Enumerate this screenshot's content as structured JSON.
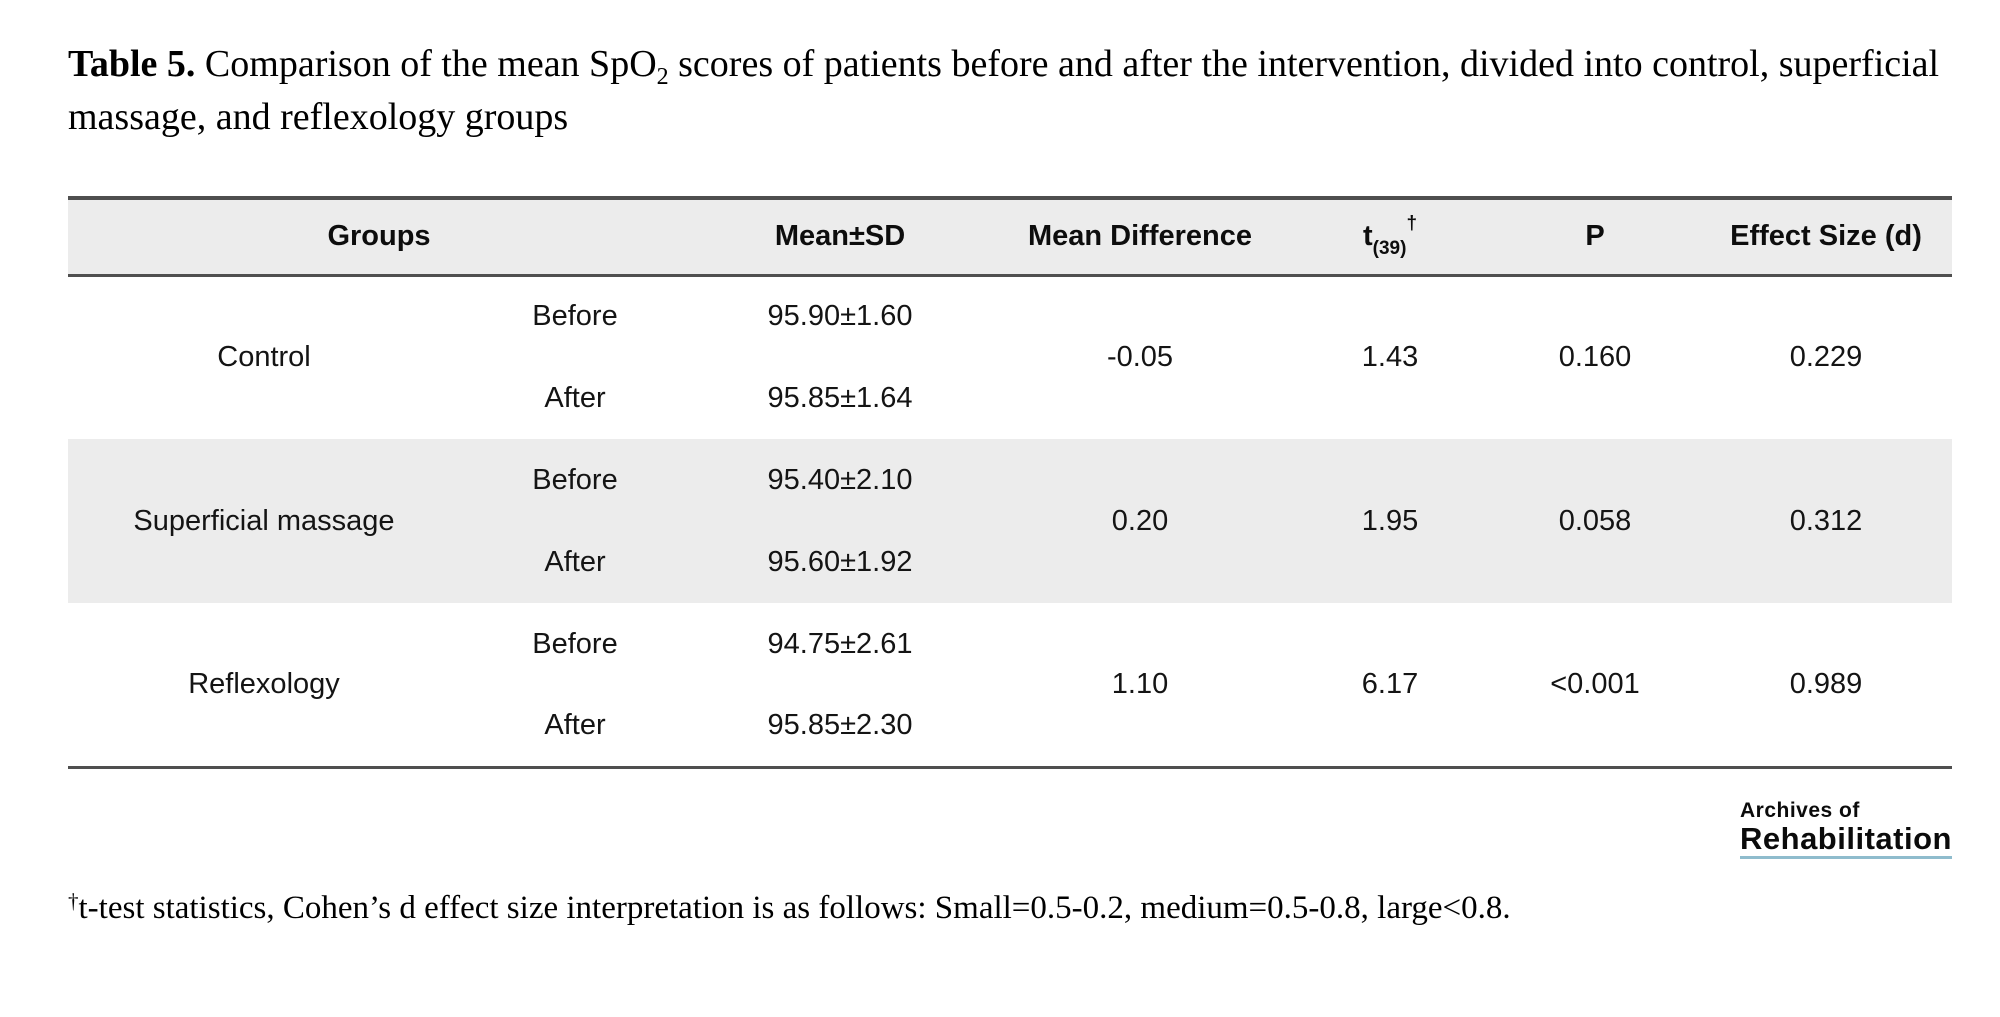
{
  "title": {
    "label": "Table 5.",
    "pre_sub": " Comparison of the mean SpO",
    "subscript": "2",
    "post_sub": " scores of patients before and after the intervention, divided into control, superficial massage, and reflexology groups"
  },
  "table": {
    "header": {
      "groups": "Groups",
      "mean_sd": "Mean±SD",
      "mean_difference": "Mean Difference",
      "t_base": "t",
      "t_subscript": "(39)",
      "t_superscript": "†",
      "p": "P",
      "effect_size": "Effect Size (d)"
    },
    "groups": [
      {
        "name": "Control",
        "phases": [
          {
            "phase": "Before",
            "mean_sd": "95.90±1.60"
          },
          {
            "phase": "After",
            "mean_sd": "95.85±1.64"
          }
        ],
        "mean_difference": "-0.05",
        "t": "1.43",
        "p": "0.160",
        "effect_size": "0.229"
      },
      {
        "name": "Superficial massage",
        "phases": [
          {
            "phase": "Before",
            "mean_sd": "95.40±2.10"
          },
          {
            "phase": "After",
            "mean_sd": "95.60±1.92"
          }
        ],
        "mean_difference": "0.20",
        "t": "1.95",
        "p": "0.058",
        "effect_size": "0.312"
      },
      {
        "name": "Reflexology",
        "phases": [
          {
            "phase": "Before",
            "mean_sd": "94.75±2.61"
          },
          {
            "phase": "After",
            "mean_sd": "95.85±2.30"
          }
        ],
        "mean_difference": "1.10",
        "t": "6.17",
        "p": "<0.001",
        "effect_size": "0.989"
      }
    ]
  },
  "logo": {
    "line1": "Archives of",
    "line2": "Rehabilitation"
  },
  "footnote": {
    "marker": "†",
    "text": "t-test statistics, Cohen’s d effect size interpretation is as follows: Small=0.5-0.2, medium=0.5-0.8, large<0.8."
  },
  "colors": {
    "header_bg": "#ececec",
    "stripe_bg": "#ececec",
    "border": "#4f4f4f",
    "logo_underline": "#8fbccd"
  }
}
